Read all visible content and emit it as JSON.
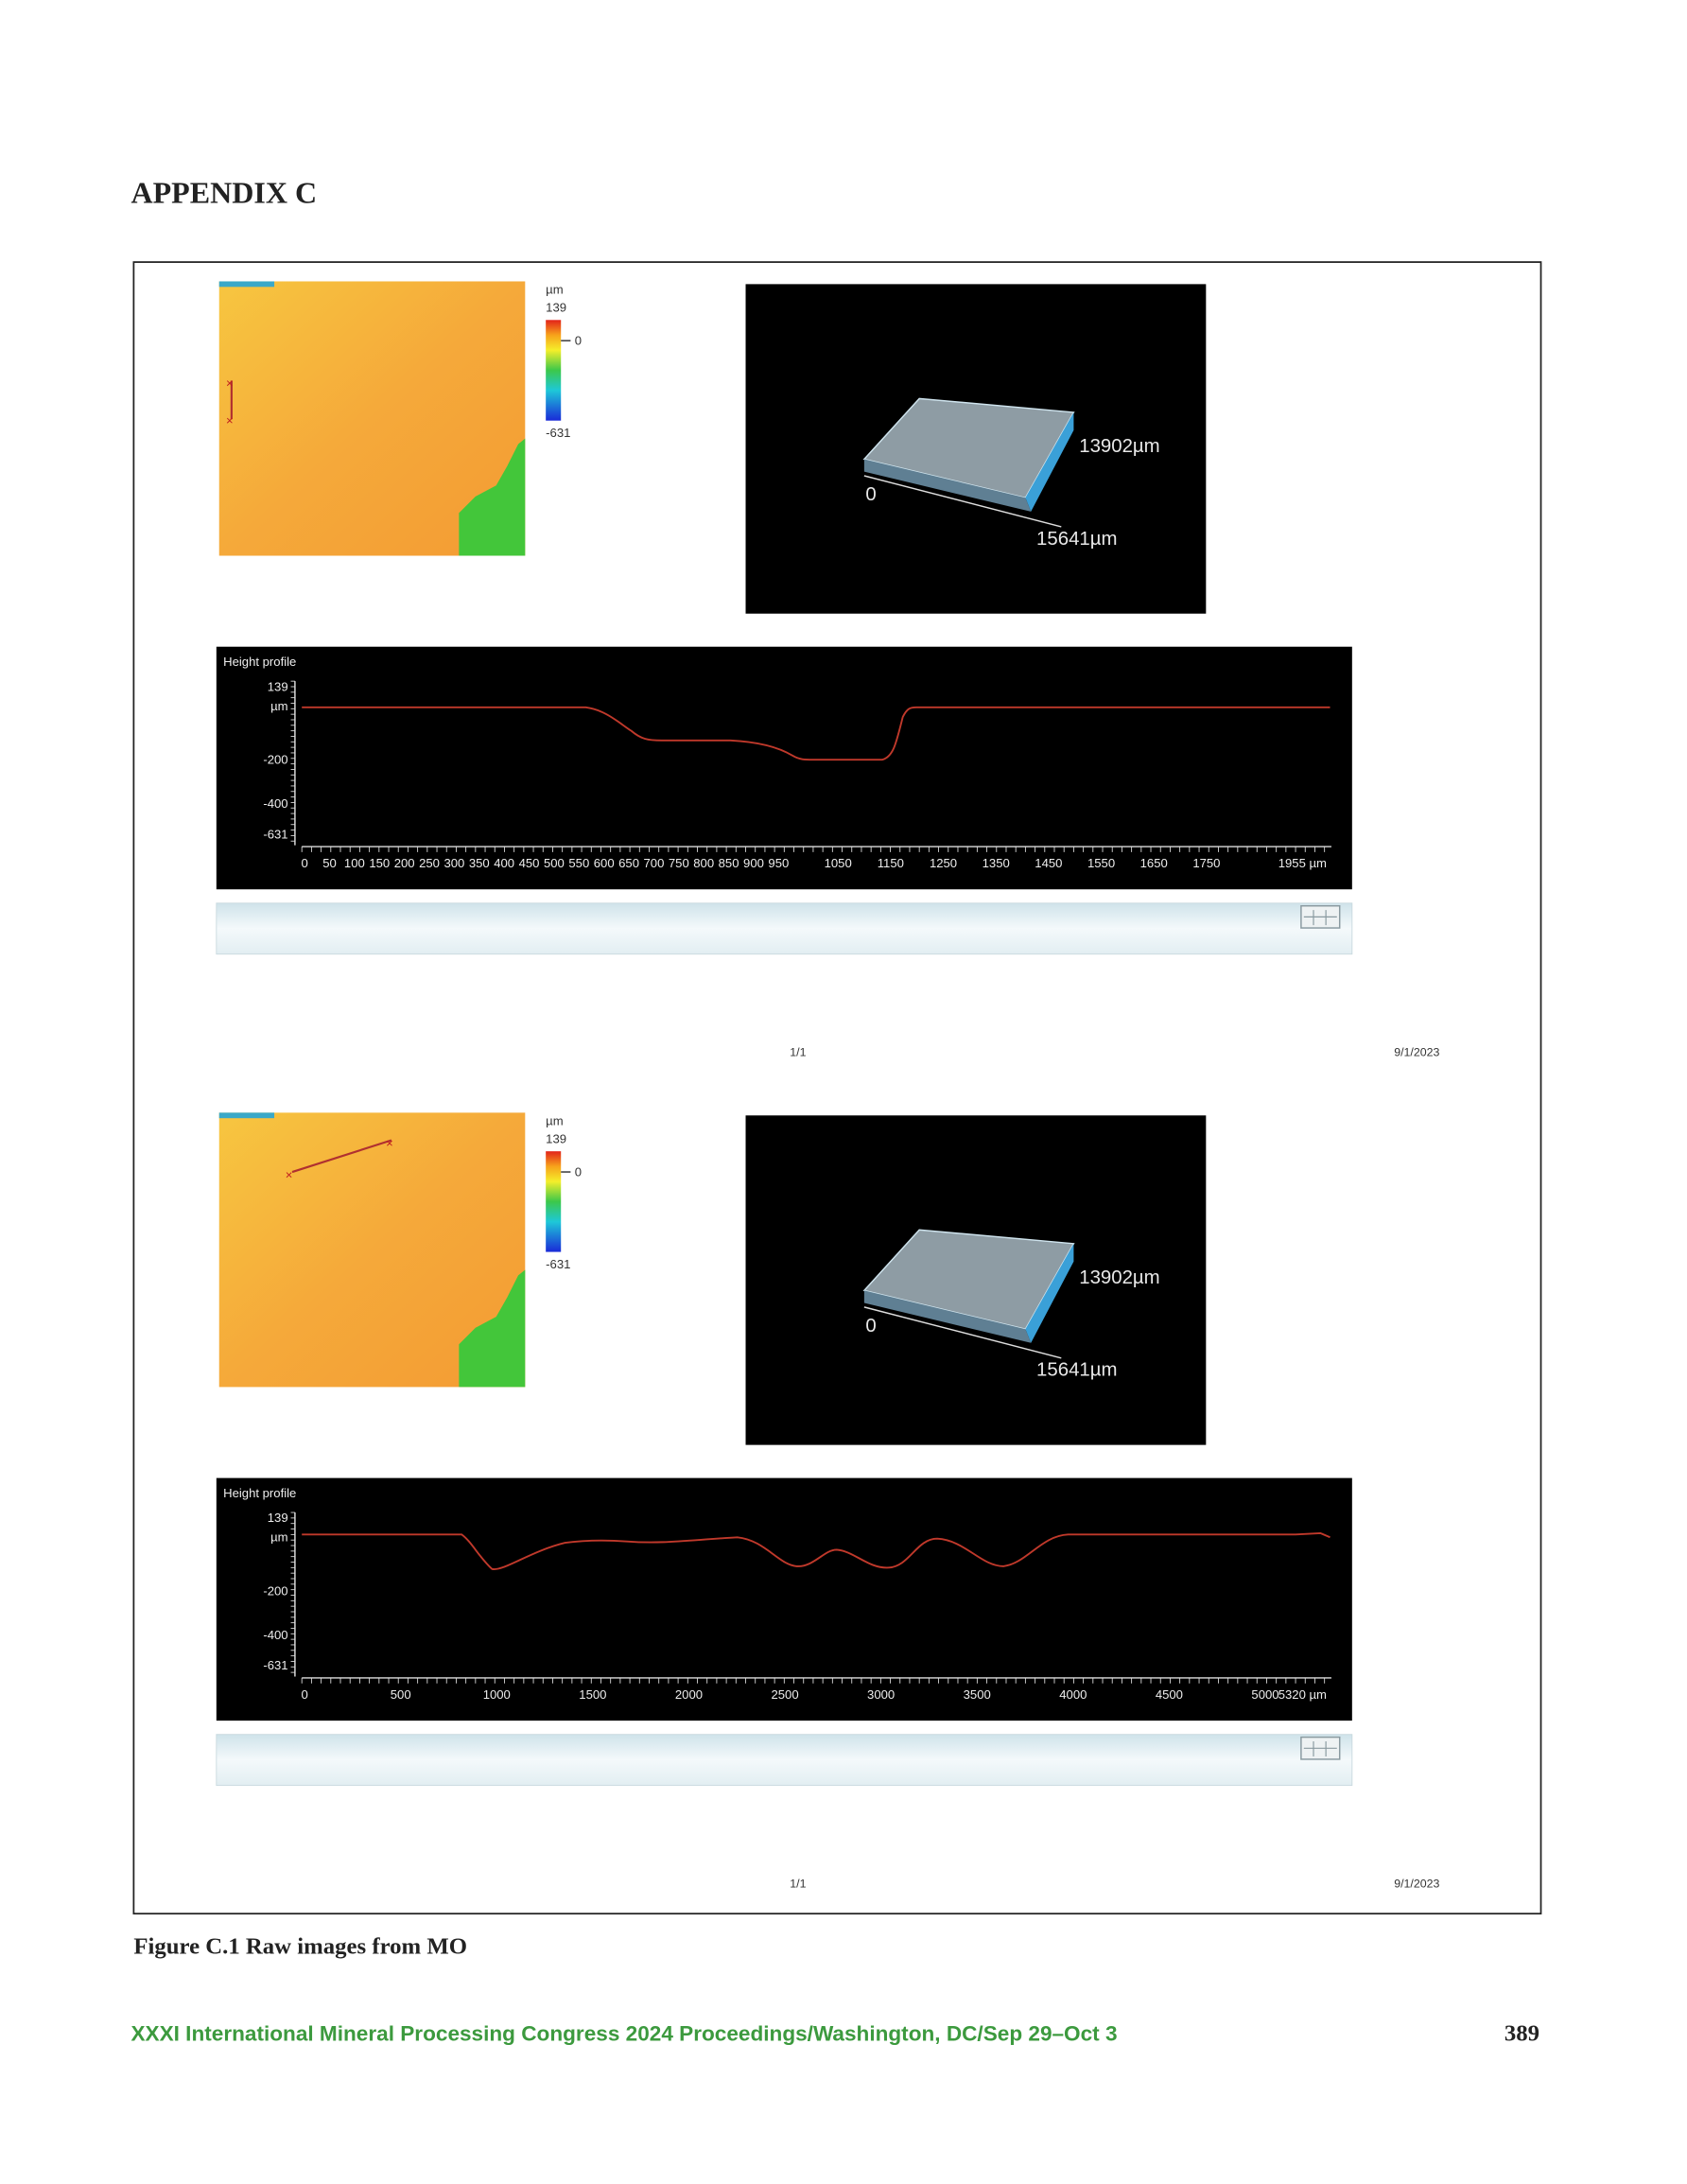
{
  "header": {
    "title": "APPENDIX C"
  },
  "figure": {
    "panels": [
      {
        "colorbar": {
          "unit": "µm",
          "max": "139",
          "zero": "0",
          "min": "-631"
        },
        "view3d": {
          "width_label": "13902µm",
          "origin": "0",
          "length_label": "15641µm"
        },
        "profile": {
          "title": "Height profile",
          "y_labels": [
            "139",
            "µm",
            "-200",
            "-400",
            "-631"
          ],
          "x_labels": [
            "0",
            "50",
            "100",
            "150",
            "200",
            "250",
            "300",
            "350",
            "400",
            "450",
            "500",
            "550",
            "600",
            "650",
            "700",
            "750",
            "800",
            "850",
            "900",
            "950",
            "1050",
            "1150",
            "1250",
            "1350",
            "1450",
            "1550",
            "1650",
            "1750",
            "1955 µm"
          ]
        },
        "page": "1/1",
        "date": "9/1/2023"
      },
      {
        "colorbar": {
          "unit": "µm",
          "max": "139",
          "zero": "0",
          "min": "-631"
        },
        "view3d": {
          "width_label": "13902µm",
          "origin": "0",
          "length_label": "15641µm"
        },
        "profile": {
          "title": "Height profile",
          "y_labels": [
            "139",
            "µm",
            "-200",
            "-400",
            "-631"
          ],
          "x_labels": [
            "0",
            "500",
            "1000",
            "1500",
            "2000",
            "2500",
            "3000",
            "3500",
            "4000",
            "4500",
            "5000",
            "5320 µm"
          ]
        },
        "page": "1/1",
        "date": "9/1/2023"
      }
    ],
    "caption": "Figure C.1 Raw images from MO"
  },
  "footer": {
    "proceedings": "XXXI International Mineral Processing Congress 2024 Proceedings/Washington, DC/Sep 29–Oct 3",
    "page_number": "389"
  }
}
